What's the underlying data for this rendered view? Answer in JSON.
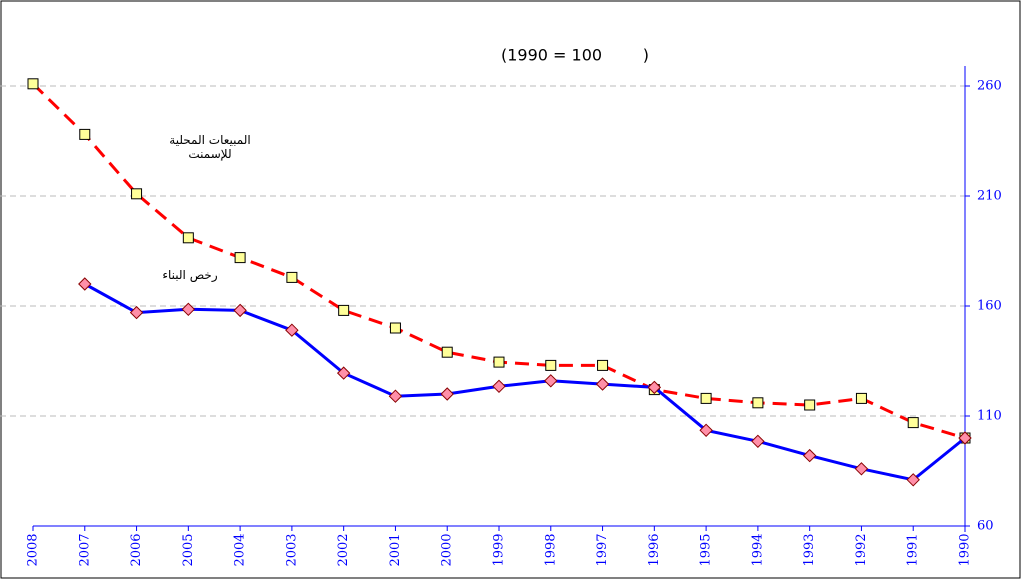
{
  "chart_data": {
    "type": "line",
    "title": "(1990 = 100        )",
    "categories": [
      "2008",
      "2007",
      "2006",
      "2005",
      "2004",
      "2003",
      "2002",
      "2001",
      "2000",
      "1999",
      "1998",
      "1997",
      "1996",
      "1995",
      "1994",
      "1993",
      "1992",
      "1991",
      "1990"
    ],
    "series": [
      {
        "name": "المبيعات المحلية للإسمنت",
        "color": "#ff0000",
        "marker_color": "#ffff99",
        "values": [
          261,
          238,
          211,
          191,
          182,
          173,
          158,
          150,
          139,
          134.5,
          133,
          133,
          122,
          118,
          116,
          115,
          118,
          107,
          100
        ]
      },
      {
        "name": "رخص البناء",
        "color": "#0000ff",
        "marker_color": "#ff8fa8",
        "values": [
          null,
          170,
          157,
          158.5,
          158,
          149,
          129.5,
          119,
          120,
          123.5,
          126,
          124.5,
          123,
          103.5,
          98.5,
          92,
          86,
          81,
          100
        ]
      }
    ],
    "ylim": [
      60,
      270
    ],
    "yticks": [
      60,
      110,
      160,
      210,
      260
    ],
    "grid": true
  }
}
